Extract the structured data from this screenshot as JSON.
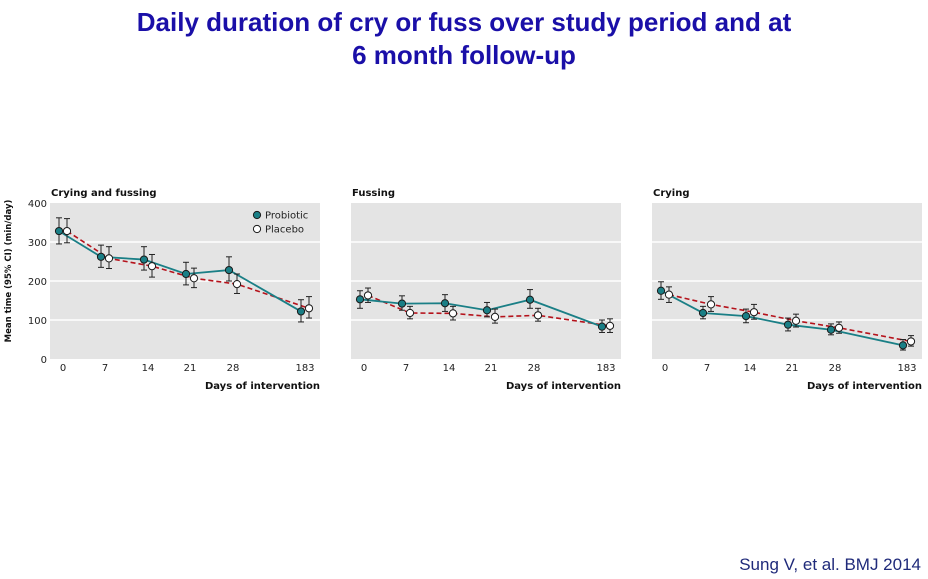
{
  "slide": {
    "title_line1": "Daily duration of cry or fuss over study period and at",
    "title_line2": "6 month follow-up",
    "citation": "Sung V, et al. BMJ 2014"
  },
  "colors": {
    "probiotic": "#1a7f86",
    "placebo": "#b5121b",
    "plot_bg": "#e4e4e4",
    "gridline": "#ffffff"
  },
  "chart_data": [
    {
      "type": "line",
      "title": "Crying and fussing",
      "xlabel": "Days of intervention",
      "ylabel": "Mean time (95% CI) (min/day)",
      "x_tick_labels": [
        "0",
        "7",
        "14",
        "21",
        "28",
        "183"
      ],
      "y_ticks": [
        0,
        100,
        200,
        300,
        400
      ],
      "ylim": [
        0,
        400
      ],
      "grid": true,
      "legend_position": "top-right",
      "series": [
        {
          "name": "Probiotic",
          "style": "solid",
          "marker": "filled",
          "values": [
            328,
            262,
            255,
            218,
            228,
            122
          ],
          "ci_low": [
            295,
            235,
            228,
            190,
            200,
            95
          ],
          "ci_high": [
            362,
            292,
            288,
            248,
            262,
            152
          ]
        },
        {
          "name": "Placebo",
          "style": "dashed",
          "marker": "open",
          "values": [
            328,
            258,
            238,
            207,
            192,
            130
          ],
          "ci_low": [
            298,
            232,
            210,
            183,
            168,
            105
          ],
          "ci_high": [
            360,
            288,
            268,
            233,
            218,
            160
          ]
        }
      ]
    },
    {
      "type": "line",
      "title": "Fussing",
      "xlabel": "Days of intervention",
      "x_tick_labels": [
        "0",
        "7",
        "14",
        "21",
        "28",
        "183"
      ],
      "ylim": [
        0,
        400
      ],
      "grid": true,
      "series": [
        {
          "name": "Probiotic",
          "style": "solid",
          "marker": "filled",
          "values": [
            153,
            142,
            143,
            125,
            152,
            83
          ],
          "ci_low": [
            130,
            125,
            122,
            108,
            130,
            68
          ],
          "ci_high": [
            175,
            162,
            165,
            145,
            178,
            100
          ]
        },
        {
          "name": "Placebo",
          "style": "dashed",
          "marker": "open",
          "values": [
            163,
            118,
            117,
            108,
            112,
            85
          ],
          "ci_low": [
            145,
            103,
            100,
            92,
            97,
            68
          ],
          "ci_high": [
            182,
            135,
            135,
            128,
            130,
            103
          ]
        }
      ]
    },
    {
      "type": "line",
      "title": "Crying",
      "xlabel": "Days of intervention",
      "x_tick_labels": [
        "0",
        "7",
        "14",
        "21",
        "28",
        "183"
      ],
      "ylim": [
        0,
        400
      ],
      "grid": true,
      "series": [
        {
          "name": "Probiotic",
          "style": "solid",
          "marker": "filled",
          "values": [
            175,
            118,
            110,
            88,
            75,
            35
          ],
          "ci_low": [
            153,
            103,
            93,
            72,
            62,
            23
          ],
          "ci_high": [
            198,
            135,
            128,
            105,
            90,
            50
          ]
        },
        {
          "name": "Placebo",
          "style": "dashed",
          "marker": "open",
          "values": [
            165,
            140,
            120,
            98,
            80,
            45
          ],
          "ci_low": [
            145,
            122,
            102,
            82,
            66,
            33
          ],
          "ci_high": [
            185,
            160,
            140,
            115,
            95,
            60
          ]
        }
      ]
    }
  ]
}
